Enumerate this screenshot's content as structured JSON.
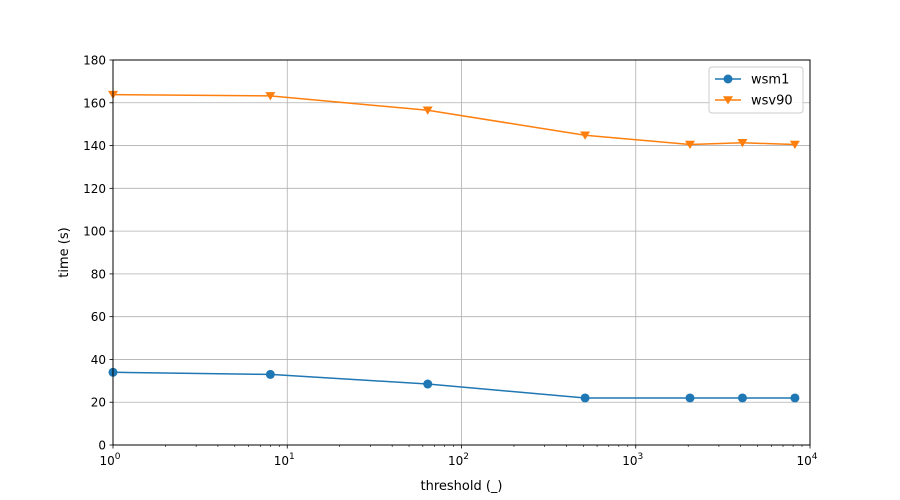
{
  "chart_data": {
    "type": "line",
    "xscale": "log",
    "xlim": [
      1,
      10000
    ],
    "ylim": [
      0,
      180
    ],
    "xlabel": "threshold (_)",
    "ylabel": "time (s)",
    "x_ticks": [
      {
        "value": 1,
        "base": "10",
        "exp": "0"
      },
      {
        "value": 10,
        "base": "10",
        "exp": "1"
      },
      {
        "value": 100,
        "base": "10",
        "exp": "2"
      },
      {
        "value": 1000,
        "base": "10",
        "exp": "3"
      },
      {
        "value": 10000,
        "base": "10",
        "exp": "4"
      }
    ],
    "y_ticks": [
      0,
      20,
      40,
      60,
      80,
      100,
      120,
      140,
      160,
      180
    ],
    "grid": true,
    "legend_position": "top-right",
    "x": [
      1,
      8,
      64,
      512,
      2048,
      4096,
      8192
    ],
    "series": [
      {
        "name": "wsm1",
        "color": "#1f77b4",
        "marker": "circle",
        "values": [
          34,
          33,
          28.5,
          22,
          22,
          22,
          22
        ]
      },
      {
        "name": "wsv90",
        "color": "#ff7f0e",
        "marker": "triangle-down",
        "values": [
          163.8,
          163.2,
          156.5,
          144.8,
          140.5,
          141.3,
          140.5
        ]
      }
    ]
  }
}
